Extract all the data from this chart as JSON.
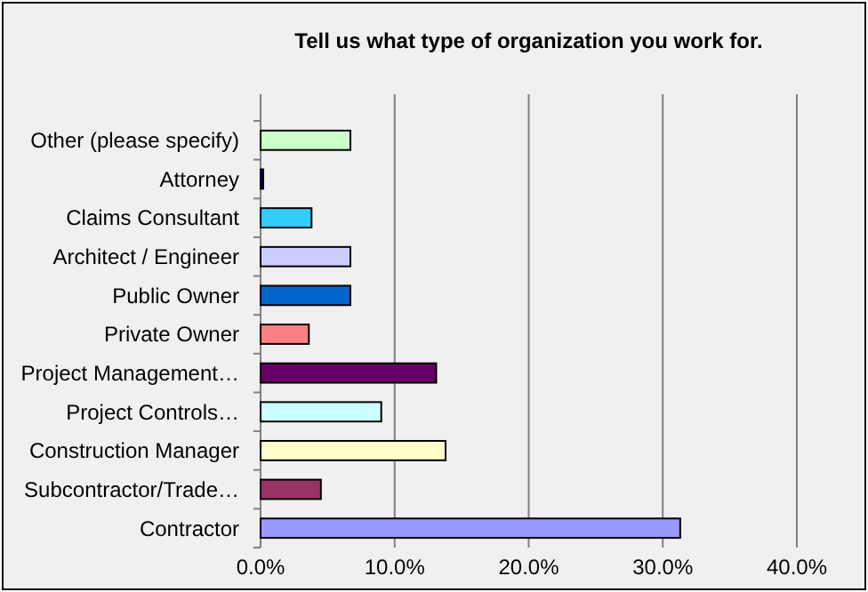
{
  "chart_data": {
    "type": "bar",
    "orientation": "horizontal",
    "title": "Tell us what type of organization you work for.",
    "categories": [
      "Other (please specify)",
      "Attorney",
      "Claims Consultant",
      "Architect / Engineer",
      "Public Owner",
      "Private Owner",
      "Project Management…",
      "Project Controls…",
      "Construction Manager",
      "Subcontractor/Trade…",
      "Contractor"
    ],
    "values": [
      6.7,
      0.2,
      3.8,
      6.7,
      6.7,
      3.6,
      13.1,
      9.0,
      13.8,
      4.5,
      31.3
    ],
    "colors": [
      "#ccffcc",
      "#000080",
      "#33ccff",
      "#ccccff",
      "#0066cc",
      "#ff8080",
      "#660066",
      "#ccffff",
      "#ffffcc",
      "#993366",
      "#9999ff"
    ],
    "xlim": [
      0,
      40
    ],
    "xticks": [
      {
        "value": 0,
        "label": "0.0%"
      },
      {
        "value": 10,
        "label": "10.0%"
      },
      {
        "value": 20,
        "label": "20.0%"
      },
      {
        "value": 30,
        "label": "30.0%"
      },
      {
        "value": 40,
        "label": "40.0%"
      }
    ],
    "grid": "x"
  }
}
